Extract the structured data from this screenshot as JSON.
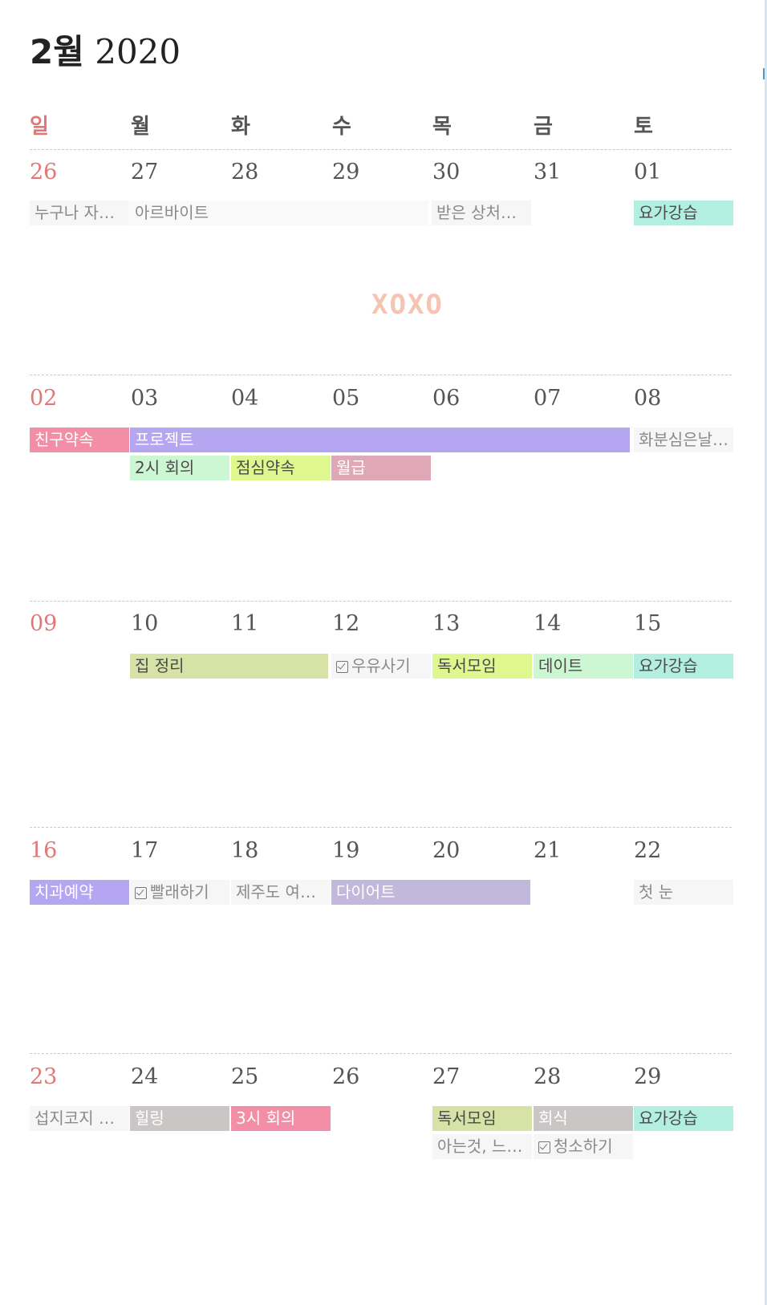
{
  "header": {
    "month": "2월",
    "year": "2020"
  },
  "weekdays": [
    "일",
    "월",
    "화",
    "수",
    "목",
    "금",
    "토"
  ],
  "weeks": [
    {
      "dates": [
        "26",
        "27",
        "28",
        "29",
        "30",
        "31",
        "01"
      ]
    },
    {
      "dates": [
        "02",
        "03",
        "04",
        "05",
        "06",
        "07",
        "08"
      ]
    },
    {
      "dates": [
        "09",
        "10",
        "11",
        "12",
        "13",
        "14",
        "15"
      ]
    },
    {
      "dates": [
        "16",
        "17",
        "18",
        "19",
        "20",
        "21",
        "22"
      ]
    },
    {
      "dates": [
        "23",
        "24",
        "25",
        "26",
        "27",
        "28",
        "29"
      ]
    }
  ],
  "events": {
    "w1": [
      "누구나 자…",
      "아르바이트",
      "받은 상처…",
      "요가강습"
    ],
    "w2": [
      "친구약속",
      "프로젝트",
      "화분심은날…",
      "2시 회의",
      "점심약속",
      "월급"
    ],
    "w3": [
      "집 정리",
      "우유사기",
      "독서모임",
      "데이트",
      "요가강습"
    ],
    "w4": [
      "치과예약",
      "빨래하기",
      "제주도 여…",
      "다이어트",
      "첫 눈"
    ],
    "w5": [
      "섭지코지 …",
      "힐링",
      "3시 회의",
      "독서모임",
      "회식",
      "요가강습",
      "아는것, 느…",
      "청소하기"
    ]
  },
  "sticker": "XOXO",
  "colors": {
    "sunday": "#e07878",
    "pink": "#f28ea5",
    "purple": "#b5a6f2",
    "mint": "#b3efe0",
    "lime": "#dff78f",
    "olive": "#d7e3a6",
    "green_light": "#cdf7d2",
    "rose": "#e0a7b6",
    "lavender": "#c2b8dc",
    "gray": "#cbc6c6",
    "gray_light": "#f6f6f6"
  }
}
